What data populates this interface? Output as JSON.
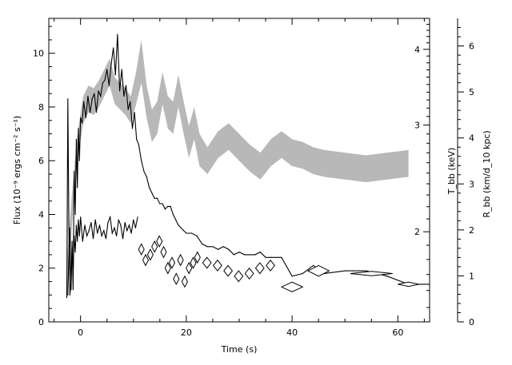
{
  "chart_data": {
    "type": "line",
    "xlabel": "Time (s)",
    "ylabel": "Flux (10⁻⁹ ergs cm⁻² s⁻¹)",
    "ylabel_right_outer": "R_bb (km/d_10 kpc)",
    "ylabel_right_inner": "T_bb (keV)",
    "xlim": [
      -6,
      66
    ],
    "ylim": [
      0,
      11.3
    ],
    "x_ticks": [
      0,
      20,
      40,
      60
    ],
    "y_ticks": [
      0,
      2,
      4,
      6,
      8,
      10
    ],
    "t_ticks": [
      2,
      3,
      4
    ],
    "r_ticks": [
      0,
      1,
      2,
      3,
      4,
      5,
      6
    ],
    "series": [
      {
        "kind": "flux_line",
        "x": [
          -2.6,
          -2.4,
          -2.2,
          -2.0,
          -1.8,
          -1.6,
          -1.4,
          -1.2,
          -1.0,
          -0.8,
          -0.6,
          -0.4,
          -0.2,
          0.0,
          0.3,
          0.6,
          1.0,
          1.4,
          1.8,
          2.2,
          2.6,
          3.0,
          3.4,
          3.8,
          4.2,
          4.6,
          5.0,
          5.4,
          5.8,
          6.2,
          6.6,
          7.0,
          7.4,
          7.8,
          8.2,
          8.6,
          9.0,
          9.4,
          9.8,
          10.2,
          10.6,
          11.0,
          11.5,
          12.0,
          12.5,
          13.0,
          13.5,
          14.0,
          14.5,
          15.0,
          15.5,
          16.0,
          16.5,
          17.0,
          17.5,
          18.0,
          18.5,
          19.0,
          19.5,
          20.0,
          21.0,
          22.0,
          23.0,
          24.0,
          25.0,
          26.0,
          27.0,
          28.0,
          29.0,
          30.0,
          31.0,
          32.0,
          33.0,
          34.0,
          35.0,
          36.0,
          38.0,
          40.0,
          42.0,
          44.0,
          46.0,
          50.0,
          54.0,
          58.0,
          62.0,
          66.0
        ],
        "y": [
          0.9,
          8.3,
          3.5,
          1.0,
          1.5,
          3.0,
          1.2,
          5.6,
          4.0,
          6.8,
          5.0,
          7.2,
          6.0,
          7.6,
          7.4,
          8.2,
          7.6,
          8.4,
          7.8,
          8.3,
          8.5,
          7.8,
          8.6,
          8.4,
          8.9,
          9.0,
          9.4,
          8.8,
          9.6,
          10.2,
          9.2,
          10.7,
          8.6,
          9.4,
          8.4,
          8.8,
          7.9,
          8.2,
          7.2,
          7.8,
          6.8,
          6.6,
          6.0,
          5.6,
          5.4,
          5.0,
          4.8,
          4.6,
          4.6,
          4.4,
          4.4,
          4.2,
          4.3,
          4.3,
          4.0,
          3.8,
          3.6,
          3.5,
          3.4,
          3.3,
          3.3,
          3.2,
          2.9,
          2.8,
          2.8,
          2.7,
          2.8,
          2.7,
          2.5,
          2.6,
          2.5,
          2.5,
          2.5,
          2.6,
          2.4,
          2.4,
          2.4,
          1.7,
          1.8,
          2.1,
          1.8,
          1.9,
          1.9,
          1.7,
          1.4,
          1.4
        ]
      },
      {
        "kind": "radius_line",
        "x": [
          -2.4,
          -2.2,
          -2.0,
          -1.8,
          -1.6,
          -1.4,
          -1.2,
          -1.0,
          -0.8,
          -0.6,
          -0.4,
          -0.2,
          0.0,
          0.4,
          0.8,
          1.2,
          1.6,
          2.0,
          2.4,
          2.8,
          3.2,
          3.6,
          4.0,
          4.4,
          4.8,
          5.2,
          5.6,
          6.0,
          6.4,
          6.8,
          7.2,
          7.6,
          8.0,
          8.4,
          8.8,
          9.2,
          9.6,
          10.0,
          10.4,
          10.8
        ],
        "y": [
          1.0,
          2.4,
          3.5,
          1.2,
          2.8,
          1.8,
          3.2,
          2.6,
          3.6,
          3.0,
          3.8,
          3.2,
          3.9,
          3.0,
          3.6,
          3.2,
          3.4,
          3.7,
          3.1,
          3.8,
          3.3,
          3.6,
          3.2,
          3.4,
          3.1,
          3.7,
          3.9,
          3.3,
          3.5,
          3.2,
          3.8,
          3.6,
          3.1,
          3.7,
          3.4,
          3.6,
          3.3,
          3.8,
          3.5,
          3.9
        ]
      },
      {
        "kind": "temperature_band",
        "x": [
          -2.5,
          -1.5,
          -0.5,
          0.5,
          1.5,
          2.5,
          3.5,
          4.5,
          5.5,
          6.5,
          7.5,
          8.5,
          9.5,
          10.5,
          11.5,
          12.5,
          13.5,
          14.5,
          15.5,
          16.5,
          17.5,
          18.5,
          19.5,
          20.5,
          21.5,
          22.5,
          24.0,
          26.0,
          28.0,
          30.0,
          32.0,
          34.0,
          36.0,
          38.0,
          40.0,
          42.0,
          44.0,
          46.0,
          50.0,
          54.0,
          58.0,
          62.0
        ],
        "y": [
          1.8,
          4.5,
          6.6,
          7.9,
          8.3,
          8.2,
          8.5,
          8.9,
          9.3,
          8.6,
          8.4,
          8.2,
          7.9,
          8.7,
          9.7,
          8.2,
          7.3,
          7.6,
          8.7,
          7.8,
          7.6,
          8.6,
          7.6,
          6.7,
          7.4,
          6.4,
          6.0,
          6.6,
          6.9,
          6.5,
          6.1,
          5.8,
          6.3,
          6.6,
          6.3,
          6.2,
          6.0,
          5.9,
          5.8,
          5.7,
          5.8,
          5.9
        ],
        "band_halfwidth": [
          0.7,
          0.6,
          0.5,
          0.5,
          0.5,
          0.5,
          0.5,
          0.5,
          0.5,
          0.5,
          0.5,
          0.5,
          0.5,
          0.6,
          0.8,
          0.6,
          0.6,
          0.6,
          0.6,
          0.6,
          0.6,
          0.6,
          0.6,
          0.6,
          0.6,
          0.6,
          0.5,
          0.5,
          0.5,
          0.5,
          0.5,
          0.5,
          0.5,
          0.5,
          0.5,
          0.5,
          0.5,
          0.5,
          0.5,
          0.5,
          0.5,
          0.5
        ]
      },
      {
        "kind": "radius_diamonds",
        "x": [
          11.5,
          12.3,
          13.2,
          14.0,
          14.9,
          15.7,
          16.5,
          17.3,
          18.1,
          18.9,
          19.7,
          20.5,
          21.3,
          22.1,
          23.9,
          25.9,
          27.9,
          29.9,
          31.9,
          33.9,
          35.9,
          40.0,
          45.0,
          55.0,
          62.0
        ],
        "y": [
          2.7,
          2.3,
          2.5,
          2.8,
          3.0,
          2.6,
          2.0,
          2.2,
          1.6,
          2.3,
          1.5,
          2.0,
          2.2,
          2.4,
          2.2,
          2.1,
          1.9,
          1.7,
          1.8,
          2.0,
          2.1,
          1.3,
          1.9,
          1.8,
          1.4
        ],
        "half_width_s": [
          0.4,
          0.4,
          0.4,
          0.4,
          0.4,
          0.4,
          0.4,
          0.4,
          0.4,
          0.4,
          0.4,
          0.4,
          0.4,
          0.4,
          0.8,
          0.8,
          0.8,
          0.8,
          0.8,
          0.8,
          0.8,
          2.0,
          2.0,
          4.0,
          2.0
        ],
        "half_height": [
          0.2,
          0.2,
          0.2,
          0.2,
          0.2,
          0.2,
          0.2,
          0.2,
          0.2,
          0.2,
          0.2,
          0.2,
          0.2,
          0.2,
          0.2,
          0.2,
          0.2,
          0.2,
          0.2,
          0.2,
          0.2,
          0.18,
          0.2,
          0.08,
          0.08
        ]
      }
    ]
  }
}
